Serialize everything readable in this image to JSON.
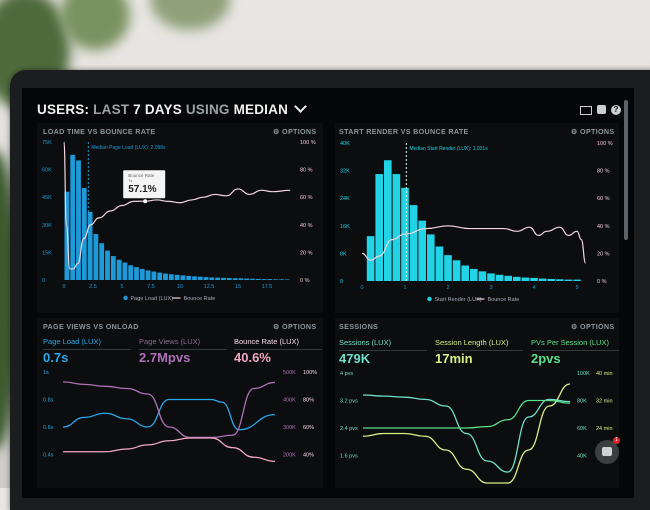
{
  "header": {
    "users": "USERS:",
    "last": "LAST",
    "days": "7 DAYS",
    "using": "USING",
    "median": "MEDIAN",
    "chevron": "chevron-down-icon"
  },
  "toolbar_icons": [
    "monitor-icon",
    "image-icon",
    "help-icon"
  ],
  "panels": [
    {
      "title": "LOAD TIME VS BOUNCE RATE",
      "options": "OPTIONS"
    },
    {
      "title": "START RENDER VS BOUNCE RATE",
      "options": "OPTIONS"
    },
    {
      "title": "PAGE VIEWS VS ONLOAD",
      "options": "OPTIONS",
      "kpis": [
        {
          "label": "Page Load (LUX)",
          "value": "0.7s",
          "color": "#2aa7e8"
        },
        {
          "label": "Page Views (LUX)",
          "value": "2.7Mpvs",
          "color": "#b070b8"
        },
        {
          "label": "Bounce Rate (LUX)",
          "value": "40.6%",
          "color": "#f0a8c0"
        }
      ]
    },
    {
      "title": "SESSIONS",
      "options": "OPTIONS",
      "kpis": [
        {
          "label": "Sessions (LUX)",
          "value": "479K",
          "color": "#6fe0c8"
        },
        {
          "label": "Session Length (LUX)",
          "value": "17min",
          "color": "#d8f08a"
        },
        {
          "label": "PVs Per Session (LUX)",
          "value": "2pvs",
          "color": "#5ee08a"
        }
      ]
    }
  ],
  "chat": {
    "badge": "1"
  },
  "chart_data": [
    {
      "type": "bar",
      "title": "LOAD TIME VS BOUNCE RATE",
      "xlim": [
        0,
        19.5
      ],
      "ylim": [
        0,
        75
      ],
      "y2lim": [
        0,
        100
      ],
      "xticks": [
        "0",
        "2.5",
        "5",
        "7.5",
        "10",
        "12.5",
        "15",
        "17.5"
      ],
      "xtick_values": [
        0,
        2.5,
        5,
        7.5,
        10,
        12.5,
        15,
        17.5
      ],
      "yticks": [
        "0",
        "15K",
        "30K",
        "45K",
        "60K",
        "75K"
      ],
      "ytick_values": [
        0,
        15,
        30,
        45,
        60,
        75
      ],
      "y2ticks": [
        "0 %",
        "20 %",
        "40 %",
        "60 %",
        "80 %",
        "100 %"
      ],
      "y2tick_values": [
        0,
        20,
        40,
        60,
        80,
        100
      ],
      "bars": {
        "name": "Page Load (LUX)",
        "start": 0,
        "width": 0.5,
        "color": "#1f9ad8",
        "values": [
          48,
          68,
          65,
          50,
          37,
          25,
          20,
          16,
          13,
          11,
          9.5,
          8,
          7,
          6,
          5.2,
          4.6,
          4,
          3.5,
          3.1,
          2.8,
          2.5,
          2.2,
          2,
          1.8,
          1.6,
          1.4,
          1.3,
          1.2,
          1.1,
          1,
          0.9,
          0.8,
          0.7,
          0.6,
          0.5,
          0.5,
          0.4,
          0.4,
          0.3
        ]
      },
      "lines": [
        {
          "name": "Bounce Rate",
          "axis": "y2",
          "color": "#f4d6dc",
          "x": [
            0,
            0.2,
            0.5,
            0.8,
            1.2,
            1.7,
            2.3,
            3,
            4,
            5,
            6,
            7,
            8,
            9,
            10,
            11,
            12,
            13,
            14,
            15,
            16,
            17,
            18,
            19.5
          ],
          "values": [
            100,
            40,
            8,
            8,
            12,
            30,
            40,
            45,
            50,
            54,
            57,
            57.1,
            58,
            57,
            56,
            58,
            60,
            62,
            61,
            66,
            62,
            65,
            64,
            65
          ]
        }
      ],
      "median": {
        "x": 2.098,
        "label": "Median Page Load (LUX): 2.098s"
      },
      "tooltip": {
        "title": "Bounce Rate",
        "sub": "7s",
        "value": "57.1%",
        "x": 7,
        "y": 57.1
      },
      "legend": [
        "Page Load (LUX)",
        "Bounce Rate"
      ]
    },
    {
      "type": "bar",
      "title": "START RENDER VS BOUNCE RATE",
      "xlim": [
        0,
        5.2
      ],
      "ylim": [
        0,
        40
      ],
      "y2lim": [
        0,
        100
      ],
      "xticks": [
        "0",
        "1",
        "2",
        "3",
        "4",
        "5"
      ],
      "xtick_values": [
        0,
        1,
        2,
        3,
        4,
        5
      ],
      "yticks": [
        "0",
        "8K",
        "16K",
        "24K",
        "32K",
        "40K"
      ],
      "ytick_values": [
        0,
        8,
        16,
        24,
        32,
        40
      ],
      "y2ticks": [
        "0 %",
        "20 %",
        "40 %",
        "60 %",
        "80 %",
        "100 %"
      ],
      "y2tick_values": [
        0,
        20,
        40,
        60,
        80,
        100
      ],
      "bars": {
        "name": "Start Render (LUX)",
        "start": 0.1,
        "width": 0.2,
        "color": "#22d3e6",
        "values": [
          13,
          31,
          35,
          31,
          27,
          22,
          17.5,
          13.5,
          10,
          7.5,
          6,
          4.5,
          3.5,
          2.8,
          2.2,
          1.8,
          1.5,
          1.2,
          1,
          0.9,
          0.7,
          0.6,
          0.5,
          0.4,
          0.4
        ]
      },
      "lines": [
        {
          "name": "Bounce Rate",
          "axis": "y2",
          "color": "#f4d6dc",
          "x": [
            0,
            0.2,
            0.4,
            0.7,
            1,
            1.5,
            2,
            2.5,
            3,
            3.3,
            3.6,
            3.9,
            4.1,
            4.3,
            4.6,
            4.8,
            5,
            5.1,
            5.2
          ],
          "values": [
            20,
            15,
            18,
            30,
            34,
            38,
            40,
            38,
            38,
            38,
            36,
            39,
            33,
            36,
            39,
            33,
            36,
            30,
            13
          ]
        }
      ],
      "median": {
        "x": 1.031,
        "label": "Median Start Render (LUX): 1.031s"
      },
      "legend": [
        "Start Render (LUX)",
        "Bounce Rate"
      ]
    },
    {
      "type": "line",
      "title": "PAGE VIEWS VS ONLOAD",
      "xlim": [
        0,
        10
      ],
      "yticks": [
        "1s",
        "0.8s",
        "0.6s",
        "0.4s"
      ],
      "y2ticks": [
        "500K",
        "400K",
        "300K",
        "200K"
      ],
      "y3ticks": [
        "100%",
        "80%",
        "60%",
        "40%"
      ],
      "series": [
        {
          "name": "Page Load (LUX)",
          "unit": "s",
          "ylim": [
            0.2,
            1.0
          ],
          "color": "#2aa7e8",
          "x": [
            0,
            1,
            2,
            3,
            4,
            5,
            6,
            7,
            7.5,
            8.3,
            10
          ],
          "values": [
            0.6,
            0.67,
            0.7,
            0.66,
            0.6,
            0.8,
            0.8,
            0.8,
            0.78,
            0.58,
            0.69
          ]
        },
        {
          "name": "Page Views (LUX)",
          "unit": "K",
          "ylim": [
            100,
            500
          ],
          "color": "#b070b8",
          "x": [
            0,
            1,
            2,
            3,
            4,
            5,
            6,
            7,
            8,
            9,
            10
          ],
          "values": [
            464,
            455,
            448,
            440,
            420,
            300,
            262,
            262,
            270,
            440,
            462
          ]
        },
        {
          "name": "Bounce Rate (LUX)",
          "unit": "%",
          "ylim": [
            20,
            100
          ],
          "color": "#f0a8c0",
          "x": [
            0,
            1,
            2,
            3,
            4,
            5,
            6,
            7,
            8,
            9,
            10
          ],
          "values": [
            42,
            42,
            42,
            44,
            47,
            50,
            52,
            52,
            45,
            38,
            35
          ]
        }
      ]
    },
    {
      "type": "line",
      "title": "SESSIONS",
      "xlim": [
        0,
        10
      ],
      "yticks": [
        "4 pvs",
        "3.2 pvs",
        "2.4 pvs",
        "1.6 pvs"
      ],
      "y2ticks": [
        "100K",
        "80K",
        "60K",
        "40K"
      ],
      "y3ticks": [
        "40 min",
        "32 min",
        "24 min"
      ],
      "series": [
        {
          "name": "Sessions (LUX)",
          "unit": "K",
          "ylim": [
            0,
            100
          ],
          "color": "#6fe0c8",
          "x": [
            0,
            1,
            2,
            3,
            4,
            5,
            6,
            7,
            8,
            9,
            10
          ],
          "values": [
            80,
            79,
            78,
            76,
            70,
            45,
            20,
            10,
            60,
            76,
            74
          ]
        },
        {
          "name": "Session Length (LUX)",
          "unit": "min",
          "ylim": [
            0,
            40
          ],
          "color": "#d8f08a",
          "x": [
            0,
            1,
            2,
            3,
            4,
            5,
            6,
            7,
            8,
            9,
            10
          ],
          "values": [
            17,
            18,
            18,
            17,
            12,
            5,
            0,
            0,
            12,
            28,
            36
          ]
        },
        {
          "name": "PVs Per Session (LUX)",
          "unit": "pvs",
          "ylim": [
            0,
            4
          ],
          "color": "#5ee08a",
          "x": [
            0,
            1,
            2,
            3,
            4,
            5,
            6,
            7,
            8,
            9,
            10
          ],
          "values": [
            2,
            2,
            2,
            2,
            2,
            2,
            2.05,
            2.3,
            3,
            3,
            2.9
          ]
        }
      ]
    }
  ]
}
